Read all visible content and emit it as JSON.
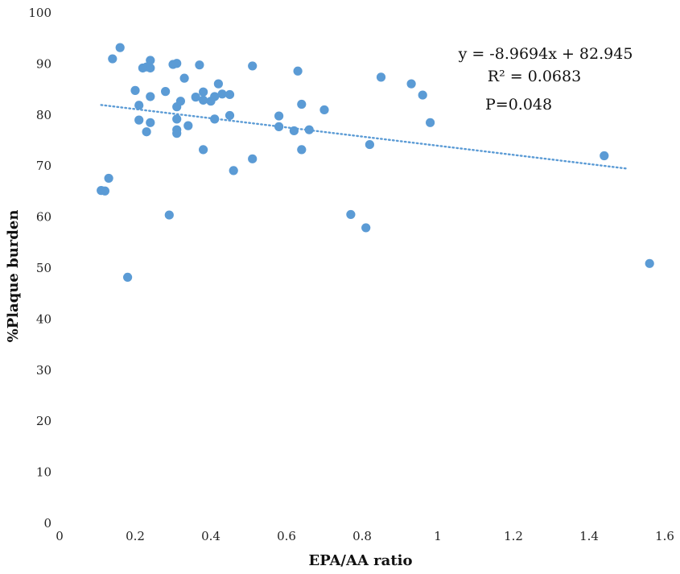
{
  "chart_data": {
    "type": "scatter",
    "title": "",
    "xlabel": "EPA/AA ratio",
    "ylabel": "%Plaque burden",
    "xlim": [
      0,
      1.6
    ],
    "ylim": [
      0,
      100
    ],
    "x_ticks": [
      "0",
      "0.2",
      "0.4",
      "0.6",
      "0.8",
      "1",
      "1.2",
      "1.4",
      "1.6"
    ],
    "y_ticks": [
      "0",
      "10",
      "20",
      "30",
      "40",
      "50",
      "60",
      "70",
      "80",
      "90",
      "100"
    ],
    "grid": false,
    "legend": "none",
    "marker_color": "#5b9bd5",
    "trendline": {
      "type": "linear",
      "slope": -8.9694,
      "intercept": 82.945,
      "x_range": [
        0.11,
        1.5
      ],
      "color": "#5b9bd5",
      "style": "dotted"
    },
    "annotations": {
      "equation": "y = -8.9694x + 82.945",
      "r_squared": "R² = 0.0683",
      "p_value": "P=0.048"
    },
    "points": [
      {
        "x": 0.11,
        "y": 65.2
      },
      {
        "x": 0.12,
        "y": 65.1
      },
      {
        "x": 0.13,
        "y": 67.6
      },
      {
        "x": 0.14,
        "y": 91.0
      },
      {
        "x": 0.16,
        "y": 93.2
      },
      {
        "x": 0.18,
        "y": 48.2
      },
      {
        "x": 0.2,
        "y": 84.8
      },
      {
        "x": 0.21,
        "y": 81.9
      },
      {
        "x": 0.21,
        "y": 79.0
      },
      {
        "x": 0.22,
        "y": 89.2
      },
      {
        "x": 0.23,
        "y": 76.7
      },
      {
        "x": 0.23,
        "y": 89.4
      },
      {
        "x": 0.24,
        "y": 90.7
      },
      {
        "x": 0.24,
        "y": 89.2
      },
      {
        "x": 0.24,
        "y": 83.6
      },
      {
        "x": 0.24,
        "y": 78.5
      },
      {
        "x": 0.28,
        "y": 84.6
      },
      {
        "x": 0.29,
        "y": 60.4
      },
      {
        "x": 0.3,
        "y": 89.9
      },
      {
        "x": 0.31,
        "y": 90.1
      },
      {
        "x": 0.31,
        "y": 81.6
      },
      {
        "x": 0.31,
        "y": 77.1
      },
      {
        "x": 0.31,
        "y": 76.4
      },
      {
        "x": 0.31,
        "y": 79.2
      },
      {
        "x": 0.32,
        "y": 82.7
      },
      {
        "x": 0.33,
        "y": 87.2
      },
      {
        "x": 0.34,
        "y": 77.9
      },
      {
        "x": 0.36,
        "y": 83.5
      },
      {
        "x": 0.37,
        "y": 89.8
      },
      {
        "x": 0.38,
        "y": 84.5
      },
      {
        "x": 0.38,
        "y": 82.9
      },
      {
        "x": 0.38,
        "y": 73.2
      },
      {
        "x": 0.4,
        "y": 82.7
      },
      {
        "x": 0.41,
        "y": 79.2
      },
      {
        "x": 0.41,
        "y": 83.6
      },
      {
        "x": 0.42,
        "y": 86.1
      },
      {
        "x": 0.43,
        "y": 84.1
      },
      {
        "x": 0.45,
        "y": 84.0
      },
      {
        "x": 0.45,
        "y": 79.9
      },
      {
        "x": 0.46,
        "y": 69.1
      },
      {
        "x": 0.51,
        "y": 89.6
      },
      {
        "x": 0.51,
        "y": 71.4
      },
      {
        "x": 0.58,
        "y": 79.8
      },
      {
        "x": 0.58,
        "y": 77.7
      },
      {
        "x": 0.62,
        "y": 76.9
      },
      {
        "x": 0.63,
        "y": 88.6
      },
      {
        "x": 0.64,
        "y": 73.2
      },
      {
        "x": 0.64,
        "y": 82.1
      },
      {
        "x": 0.66,
        "y": 77.1
      },
      {
        "x": 0.7,
        "y": 81.0
      },
      {
        "x": 0.77,
        "y": 60.5
      },
      {
        "x": 0.81,
        "y": 57.9
      },
      {
        "x": 0.82,
        "y": 74.2
      },
      {
        "x": 0.85,
        "y": 87.4
      },
      {
        "x": 0.93,
        "y": 86.1
      },
      {
        "x": 0.96,
        "y": 83.9
      },
      {
        "x": 0.98,
        "y": 78.5
      },
      {
        "x": 1.44,
        "y": 72.0
      },
      {
        "x": 1.56,
        "y": 50.9
      }
    ]
  }
}
